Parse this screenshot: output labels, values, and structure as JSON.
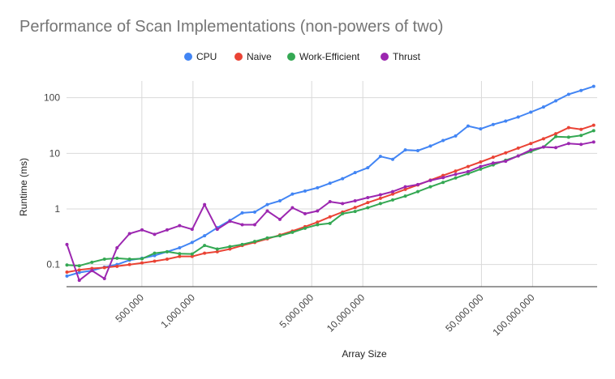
{
  "chart_data": {
    "type": "line",
    "title": "Performance of Scan Implementations (non-powers of two)",
    "xlabel": "Array Size",
    "ylabel": "Runtime (ms)",
    "x_scale": "log",
    "y_scale": "log",
    "xlim": [
      180000,
      240000000
    ],
    "ylim": [
      0.04,
      200
    ],
    "x_ticks": [
      {
        "value": 500000,
        "label": "500,000"
      },
      {
        "value": 1000000,
        "label": "1,000,000"
      },
      {
        "value": 5000000,
        "label": "5,000,000"
      },
      {
        "value": 10000000,
        "label": "10,000,000"
      },
      {
        "value": 50000000,
        "label": "50,000,000"
      },
      {
        "value": 100000000,
        "label": "100,000,000"
      }
    ],
    "y_ticks": [
      {
        "value": 0.1,
        "label": "0.1"
      },
      {
        "value": 1,
        "label": "1"
      },
      {
        "value": 10,
        "label": "10"
      },
      {
        "value": 100,
        "label": "100"
      }
    ],
    "grid": true,
    "legend_position": "top",
    "x": [
      181000,
      214000,
      254000,
      301000,
      357000,
      423000,
      501000,
      594000,
      704000,
      834000,
      989000,
      1170000,
      1390000,
      1650000,
      1950000,
      2310000,
      2740000,
      3250000,
      3850000,
      4570000,
      5410000,
      6410000,
      7600000,
      9010000,
      10700000,
      12700000,
      15000000,
      17800000,
      21100000,
      25000000,
      29700000,
      35200000,
      41700000,
      49400000,
      58600000,
      69400000,
      82300000,
      97600000,
      116000000,
      137000000,
      163000000,
      193000000,
      229000000
    ],
    "series": [
      {
        "name": "CPU",
        "color": "#4285f4",
        "values": [
          0.062,
          0.072,
          0.078,
          0.09,
          0.1,
          0.12,
          0.13,
          0.145,
          0.17,
          0.2,
          0.25,
          0.33,
          0.46,
          0.62,
          0.85,
          0.88,
          1.2,
          1.4,
          1.85,
          2.1,
          2.4,
          2.9,
          3.5,
          4.5,
          5.5,
          8.8,
          7.8,
          11.5,
          11.2,
          13.5,
          17,
          20.5,
          31,
          27.5,
          33,
          38,
          45,
          55,
          68,
          88,
          115,
          135,
          160
        ]
      },
      {
        "name": "Naive",
        "color": "#ea4335",
        "values": [
          0.073,
          0.08,
          0.085,
          0.088,
          0.093,
          0.1,
          0.107,
          0.115,
          0.125,
          0.14,
          0.14,
          0.16,
          0.17,
          0.19,
          0.22,
          0.25,
          0.29,
          0.34,
          0.4,
          0.48,
          0.58,
          0.72,
          0.88,
          1.06,
          1.3,
          1.55,
          1.85,
          2.25,
          2.7,
          3.3,
          4,
          4.8,
          5.8,
          7,
          8.5,
          10.2,
          12.4,
          15,
          18.3,
          22.5,
          29,
          27,
          32
        ]
      },
      {
        "name": "Work-Efficient",
        "color": "#34a853",
        "values": [
          0.098,
          0.095,
          0.11,
          0.125,
          0.13,
          0.125,
          0.127,
          0.16,
          0.17,
          0.157,
          0.155,
          0.22,
          0.19,
          0.21,
          0.23,
          0.26,
          0.3,
          0.33,
          0.38,
          0.45,
          0.52,
          0.55,
          0.82,
          0.9,
          1.05,
          1.25,
          1.45,
          1.7,
          2.05,
          2.5,
          3,
          3.6,
          4.3,
          5.2,
          6.2,
          7.5,
          9,
          10.8,
          13,
          20,
          19.5,
          21,
          25.5
        ]
      },
      {
        "name": "Thrust",
        "color": "#9c27b0",
        "values": [
          0.23,
          0.052,
          0.078,
          0.056,
          0.2,
          0.36,
          0.42,
          0.35,
          0.42,
          0.5,
          0.43,
          1.2,
          0.43,
          0.6,
          0.52,
          0.52,
          0.92,
          0.65,
          1.05,
          0.82,
          0.92,
          1.35,
          1.25,
          1.4,
          1.6,
          1.8,
          2.05,
          2.5,
          2.75,
          3.25,
          3.65,
          4.2,
          4.7,
          5.8,
          6.7,
          7.2,
          9,
          11.5,
          13,
          12.7,
          15,
          14.5,
          16
        ]
      }
    ]
  }
}
